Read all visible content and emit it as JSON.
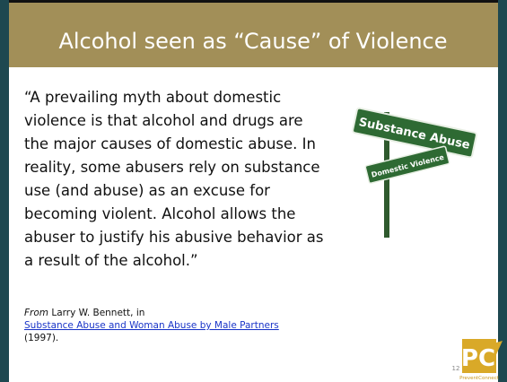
{
  "title": "Alcohol seen as “Cause” of Violence",
  "quote": [
    "“A prevailing myth about domestic",
    "violence is that alcohol and drugs are",
    "the major causes of domestic abuse. In",
    "reality, some abusers rely on substance",
    "use (and abuse) as an excuse for",
    "becoming violent. Alcohol allows the",
    "abuser to justify his abusive behavior as",
    "a result of the alcohol.”"
  ],
  "citation": {
    "from": "From",
    "author": " Larry W. Bennett, in",
    "link": "Substance Abuse and Woman Abuse by Male Partners",
    "year": "(1997)."
  },
  "sign": {
    "top": "Substance Abuse",
    "bottom": "Domestic Violence"
  },
  "slide_number": "12",
  "logo": {
    "mark": "PC",
    "name": "PreventConnect"
  }
}
